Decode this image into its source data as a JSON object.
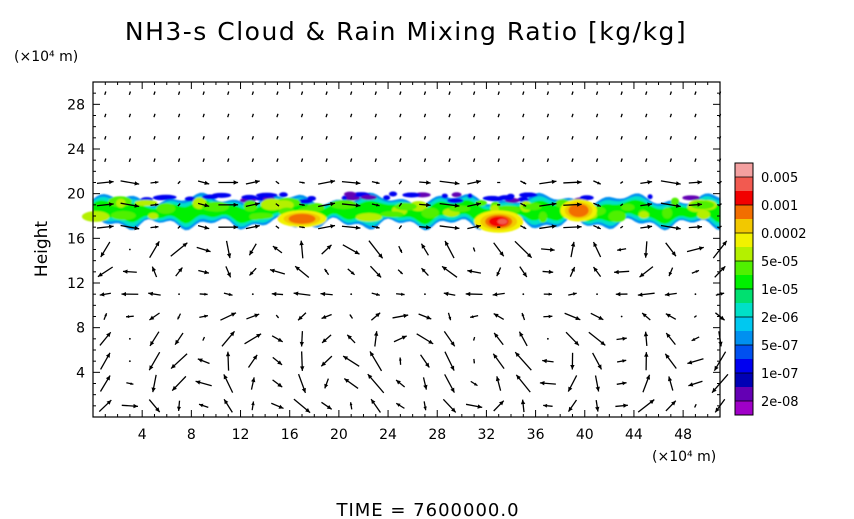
{
  "chart_data": {
    "type": "heatmap",
    "title": "NH3-s Cloud & Rain Mixing Ratio [kg/kg]",
    "xlabel": "",
    "ylabel": "Height",
    "x_unit_label": "(×10⁴ m)",
    "y_unit_label": "(×10⁴ m)",
    "xlim": [
      0,
      51
    ],
    "ylim": [
      0,
      30
    ],
    "x_ticks": [
      4,
      8,
      12,
      16,
      20,
      24,
      28,
      32,
      36,
      40,
      44,
      48
    ],
    "y_ticks": [
      4,
      8,
      12,
      16,
      20,
      24,
      28
    ],
    "colorbar": {
      "labels": [
        "0.005",
        "0.001",
        "0.0002",
        "5e-05",
        "1e-05",
        "2e-06",
        "5e-07",
        "1e-07",
        "2e-08"
      ],
      "colors_top_to_bottom": [
        "#f4a0a0",
        "#f25a50",
        "#f20000",
        "#f26e00",
        "#f2c800",
        "#f2f200",
        "#b4f000",
        "#50f000",
        "#00f000",
        "#00e070",
        "#00e0c8",
        "#00c8f0",
        "#0090f0",
        "#0050f0",
        "#0000f0",
        "#0000b4",
        "#6400b4",
        "#a000c8"
      ]
    },
    "cloud_layer": {
      "height_range": [
        17,
        20
      ],
      "peak_regions": [
        {
          "x_range": [
            31,
            35
          ],
          "height_range": [
            16.5,
            18.5
          ],
          "level": "0.001"
        },
        {
          "x_range": [
            15,
            19
          ],
          "height_range": [
            17,
            18.5
          ],
          "level": "0.0002"
        },
        {
          "x_range": [
            38,
            41
          ],
          "height_range": [
            17.5,
            19.5
          ],
          "level": "0.0002"
        }
      ]
    },
    "wind_vectors": {
      "shown": true,
      "color": "#000000"
    },
    "footer": "TIME = 7600000.0"
  }
}
